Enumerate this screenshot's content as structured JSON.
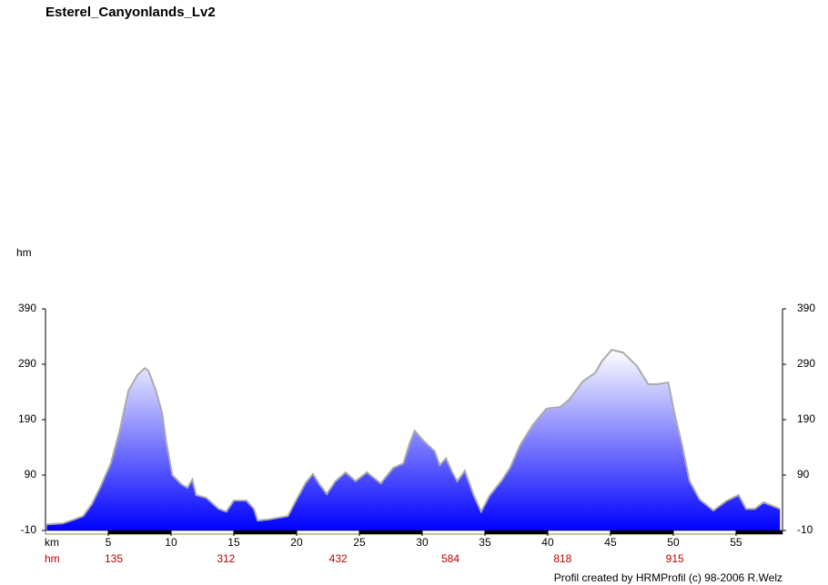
{
  "chart_data": {
    "type": "area",
    "title": "Esterel_Canyonlands_Lv2",
    "y_label": "hm",
    "x_label": "km",
    "ascent_label": "hm",
    "ascent_values": [
      135,
      312,
      432,
      584,
      818,
      915
    ],
    "footer": "Profil created by HRMProfil (c) 98-2006 R.Welz",
    "x": [
      0.1,
      1.4,
      2.3,
      3,
      3.7,
      4.4,
      5.2,
      5.9,
      6.6,
      7.3,
      7.9,
      8.2,
      8.8,
      9.3,
      9.6,
      10.1,
      10.8,
      11.3,
      11.7,
      12,
      12.8,
      13.8,
      14.4,
      15,
      16,
      16.6,
      16.9,
      17.8,
      19.3,
      20,
      20.7,
      21.3,
      21.8,
      22.4,
      23.1,
      23.9,
      24.7,
      25.6,
      26.7,
      27.7,
      28.5,
      29,
      29.4,
      30.1,
      31,
      31.4,
      31.9,
      32.4,
      32.8,
      33.4,
      34.1,
      34.7,
      35.4,
      36.3,
      37,
      37.8,
      38.8,
      39.9,
      41,
      41.7,
      42.8,
      43.8,
      44.3,
      45.1,
      46,
      47.1,
      48,
      48.7,
      49.6,
      50.1,
      50.7,
      51.3,
      52.1,
      53.2,
      54.2,
      55.2,
      55.8,
      56.5,
      57.2,
      58.5
    ],
    "values": [
      1,
      3,
      10,
      16,
      38,
      70,
      111,
      169,
      242,
      270,
      283,
      278,
      242,
      201,
      152,
      90,
      74,
      67,
      82,
      54,
      49,
      29,
      24,
      44,
      44,
      29,
      8,
      10,
      16,
      46,
      75,
      92,
      74,
      56,
      79,
      95,
      79,
      95,
      75,
      103,
      111,
      147,
      170,
      152,
      133,
      108,
      120,
      95,
      79,
      98,
      54,
      24,
      54,
      79,
      103,
      144,
      180,
      210,
      213,
      226,
      259,
      275,
      295,
      316,
      311,
      287,
      254,
      254,
      257,
      201,
      144,
      79,
      46,
      26,
      43,
      54,
      29,
      29,
      41,
      29
    ],
    "color": "#0000ff",
    "line_color": "#aaaaaa",
    "xlim": [
      0,
      58.7
    ],
    "xticks": [
      5,
      10,
      15,
      20,
      25,
      30,
      35,
      40,
      45,
      50,
      55
    ],
    "ylim": [
      -10,
      390
    ],
    "yticks": [
      -10,
      90,
      190,
      290,
      390
    ]
  }
}
